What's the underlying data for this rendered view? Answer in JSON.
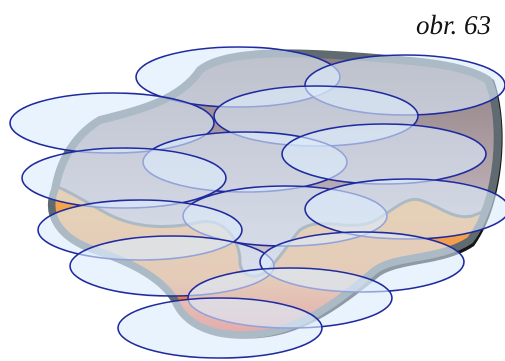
{
  "caption": "obr. 63",
  "colors": {
    "blob_outline": "#5f6b70",
    "blob_shadow": "#111111",
    "blob_top": "#8e7d80",
    "blob_bottom": "#e6dde6",
    "lava_top": "#f0a040",
    "lava_bottom": "#f02020",
    "ellipse_fill": "#dcecfb",
    "ellipse_stroke": "#1f2aa0"
  },
  "ellipse_count": 13
}
